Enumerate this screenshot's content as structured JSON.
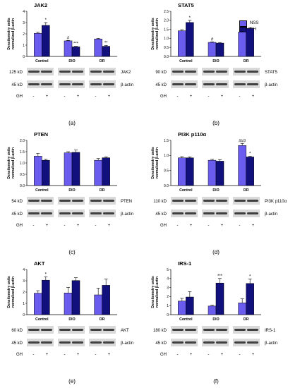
{
  "colors": {
    "nss": "#6b5cf0",
    "gh": "#11107d",
    "blot_bg": "#d9d9d9",
    "band": "#3f3f3f"
  },
  "legend": {
    "nss": "NSS",
    "gh": "GH"
  },
  "panels": [
    {
      "id": "a",
      "title": "JAK2",
      "ylabel": "Densitometry units normalized β-actin",
      "blot": {
        "rows": [
          {
            "kd": "125 kD",
            "name": "JAK2"
          },
          {
            "kd": "45 kD",
            "name": "β-actin"
          }
        ],
        "gh_label": "GH",
        "minus": "-",
        "plus": "+"
      }
    },
    {
      "id": "b",
      "title": "STAT5",
      "ylabel": "Densitometry units normalized β-actin",
      "blot": {
        "rows": [
          {
            "kd": "90 kD",
            "name": "STAT5"
          },
          {
            "kd": "45 kD",
            "name": "β-actin"
          }
        ],
        "gh_label": "GH",
        "minus": "-",
        "plus": "+"
      }
    },
    {
      "id": "c",
      "title": "PTEN",
      "ylabel": "Densitometry units normalized β-actin",
      "blot": {
        "rows": [
          {
            "kd": "54 kD",
            "name": "PTEN"
          },
          {
            "kd": "45 kD",
            "name": "β-actin"
          }
        ],
        "gh_label": "GH",
        "minus": "-",
        "plus": "+"
      }
    },
    {
      "id": "d",
      "title": "PI3K p110α",
      "ylabel": "Densitometry units normalized β-actin",
      "blot": {
        "rows": [
          {
            "kd": "110 kD",
            "name": "PI3K p110α"
          },
          {
            "kd": "45 kD",
            "name": "β-actin"
          }
        ],
        "gh_label": "GH",
        "minus": "-",
        "plus": "+"
      }
    },
    {
      "id": "e",
      "title": "AKT",
      "ylabel": "Densitometry units normalized β-actin",
      "blot": {
        "rows": [
          {
            "kd": "60 kD",
            "name": "AKT"
          },
          {
            "kd": "45 kD",
            "name": "β-actin"
          }
        ],
        "gh_label": "GH",
        "minus": "-",
        "plus": "+"
      }
    },
    {
      "id": "f",
      "title": "IRS-1",
      "ylabel": "Densitometry units normalized β-actin",
      "blot": {
        "rows": [
          {
            "kd": "180 kD",
            "name": "IRS-1"
          },
          {
            "kd": "45 kD",
            "name": "β-actin"
          }
        ],
        "gh_label": "GH",
        "minus": "-",
        "plus": "+"
      }
    }
  ],
  "chart_data": [
    {
      "type": "bar",
      "title": "JAK2",
      "categories": [
        "Control",
        "DIO",
        "DR"
      ],
      "ylim": [
        0,
        4
      ],
      "yticks": [
        "0",
        "1",
        "2",
        "3",
        "4"
      ],
      "series": [
        {
          "name": "NSS",
          "values": [
            2.05,
            1.38,
            1.55
          ],
          "errors": [
            0.1,
            0.04,
            0.05
          ]
        },
        {
          "name": "GH",
          "values": [
            2.75,
            0.85,
            0.9
          ],
          "errors": [
            0.25,
            0.05,
            0.08
          ]
        }
      ],
      "annotations": [
        [
          "",
          "*"
        ],
        [
          "#",
          "***"
        ],
        [
          "",
          "**"
        ]
      ]
    },
    {
      "type": "bar",
      "title": "STAT5",
      "categories": [
        "Control",
        "DIO",
        "DR"
      ],
      "ylim": [
        0,
        2.5
      ],
      "yticks": [
        "0.0",
        "0.5",
        "1.0",
        "1.5",
        "2.0",
        "2.5"
      ],
      "series": [
        {
          "name": "NSS",
          "values": [
            1.42,
            0.78,
            1.35
          ],
          "errors": [
            0.06,
            0.03,
            0.05
          ]
        },
        {
          "name": "GH",
          "values": [
            1.88,
            0.74,
            1.55
          ],
          "errors": [
            0.12,
            0.02,
            0.05
          ]
        }
      ],
      "annotations": [
        [
          "",
          "*"
        ],
        [
          "#",
          ""
        ],
        [
          "",
          ""
        ]
      ]
    },
    {
      "type": "bar",
      "title": "PTEN",
      "categories": [
        "Control",
        "DIO",
        "DR"
      ],
      "ylim": [
        0,
        2.0
      ],
      "yticks": [
        "0.0",
        "0.5",
        "1.0",
        "1.5",
        "2.0"
      ],
      "series": [
        {
          "name": "NSS",
          "values": [
            1.3,
            1.45,
            1.12
          ],
          "errors": [
            0.12,
            0.05,
            0.08
          ]
        },
        {
          "name": "GH",
          "values": [
            1.12,
            1.47,
            1.23
          ],
          "errors": [
            0.04,
            0.1,
            0.04
          ]
        }
      ],
      "annotations": [
        [
          "",
          ""
        ],
        [
          "",
          ""
        ],
        [
          "",
          ""
        ]
      ]
    },
    {
      "type": "bar",
      "title": "PI3K p110α",
      "categories": [
        "Control",
        "DIO",
        "DR"
      ],
      "ylim": [
        0,
        1.5
      ],
      "yticks": [
        "0.0",
        "0.5",
        "1.0",
        "1.5"
      ],
      "series": [
        {
          "name": "NSS",
          "values": [
            0.92,
            0.84,
            1.33
          ],
          "errors": [
            0.04,
            0.03,
            0.07
          ]
        },
        {
          "name": "GH",
          "values": [
            0.92,
            0.81,
            0.95
          ],
          "errors": [
            0.03,
            0.05,
            0.02
          ]
        }
      ],
      "annotations": [
        [
          "",
          ""
        ],
        [
          "",
          ""
        ],
        [
          "###",
          "*"
        ]
      ]
    },
    {
      "type": "bar",
      "title": "AKT",
      "categories": [
        "Control",
        "DIO",
        "DR"
      ],
      "ylim": [
        0,
        4
      ],
      "yticks": [
        "0",
        "1",
        "2",
        "3",
        "4"
      ],
      "series": [
        {
          "name": "NSS",
          "values": [
            1.9,
            1.92,
            1.75
          ],
          "errors": [
            0.22,
            0.5,
            0.6
          ]
        },
        {
          "name": "GH",
          "values": [
            3.05,
            3.02,
            2.6
          ],
          "errors": [
            0.3,
            0.25,
            0.55
          ]
        }
      ],
      "annotations": [
        [
          "",
          "*"
        ],
        [
          "",
          ""
        ],
        [
          "",
          ""
        ]
      ]
    },
    {
      "type": "bar",
      "title": "IRS-1",
      "categories": [
        "Control",
        "DIO",
        "DR"
      ],
      "ylim": [
        0,
        5
      ],
      "yticks": [
        "0",
        "1",
        "2",
        "3",
        "4",
        "5"
      ],
      "series": [
        {
          "name": "NSS",
          "values": [
            1.5,
            0.95,
            1.3
          ],
          "errors": [
            0.3,
            0.1,
            0.45
          ]
        },
        {
          "name": "GH",
          "values": [
            1.95,
            3.5,
            3.45
          ],
          "errors": [
            0.6,
            0.5,
            0.5
          ]
        }
      ],
      "annotations": [
        [
          "",
          ""
        ],
        [
          "",
          "***"
        ],
        [
          "",
          "*"
        ]
      ]
    }
  ]
}
